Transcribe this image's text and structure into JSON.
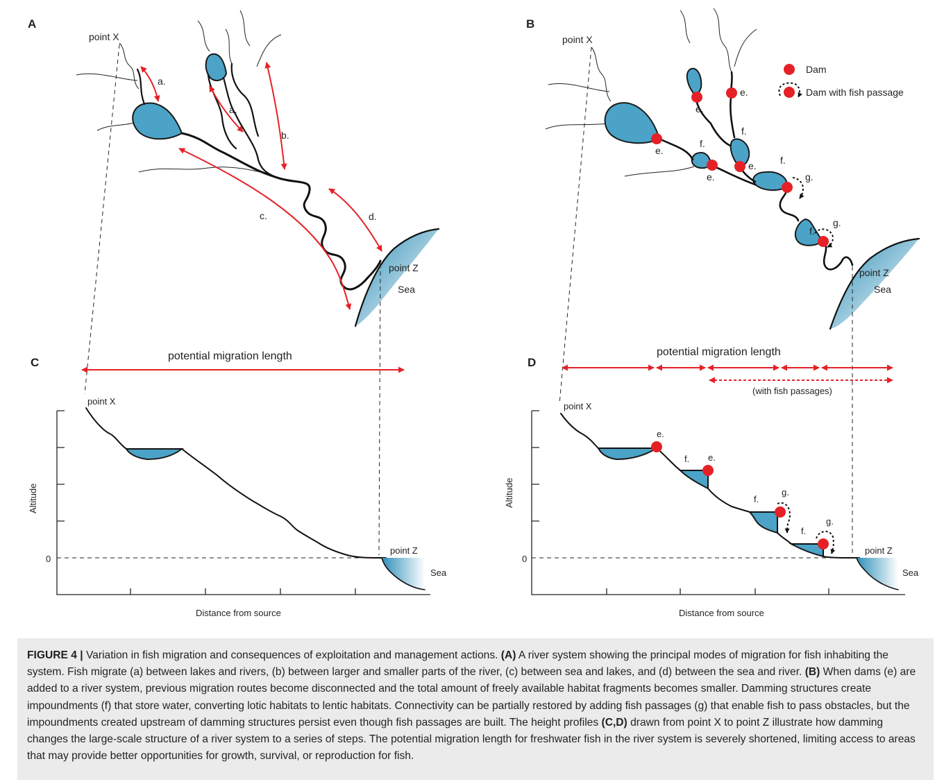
{
  "panels": {
    "A": "A",
    "B": "B",
    "C": "C",
    "D": "D"
  },
  "panel_a": {
    "point_x": "point X",
    "point_z": "point Z",
    "sea": "Sea",
    "route_labels": [
      "a.",
      "a.",
      "b.",
      "c.",
      "d."
    ]
  },
  "panel_b": {
    "point_x": "point X",
    "point_z": "point Z",
    "sea": "Sea",
    "legend": {
      "dam": "Dam",
      "dam_with_fish_passage": "Dam with fish passage"
    },
    "e_labels": [
      "e.",
      "e.",
      "e.",
      "e.",
      "e."
    ],
    "f_labels": [
      "f.",
      "f.",
      "f.",
      "f."
    ],
    "g_labels": [
      "g.",
      "g."
    ]
  },
  "panel_c": {
    "title": "potential migration length",
    "point_x": "point X",
    "point_z": "point Z",
    "sea": "Sea",
    "y_axis_label": "Altitude",
    "y_zero": "0",
    "x_axis_label": "Distance from source"
  },
  "panel_d": {
    "title": "potential migration length",
    "subtitle": "(with fish passages)",
    "point_x": "point X",
    "point_z": "point Z",
    "sea": "Sea",
    "y_axis_label": "Altitude",
    "y_zero": "0",
    "x_axis_label": "Distance from source",
    "step_labels": [
      "e.",
      "f.",
      "e.",
      "f.",
      "g.",
      "f.",
      "g."
    ]
  },
  "caption": {
    "figure_label": "FIGURE 4 |",
    "segments": [
      {
        "text": " Variation in fish migration and consequences of exploitation and management actions. "
      },
      {
        "text": "(A)",
        "bold": true
      },
      {
        "text": " A river system showing the principal modes of migration for fish inhabiting the system. Fish migrate (a) between lakes and rivers, (b) between larger and smaller parts of the river, (c) between sea and lakes, and (d) between the sea and river. "
      },
      {
        "text": "(B)",
        "bold": true
      },
      {
        "text": " When dams (e) are added to a river system, previous migration routes become disconnected and the total amount of freely available habitat fragments becomes smaller. Damming structures create impoundments (f) that store water, converting lotic habitats to lentic habitats. Connectivity can be partially restored by adding fish passages (g) that enable fish to pass obstacles, but the impoundments created upstream of damming structures persist even though fish passages are built. The height profiles "
      },
      {
        "text": "(C,D)",
        "bold": true
      },
      {
        "text": " drawn from point X to point Z illustrate how damming changes the large-scale structure of a river system to a series of steps. The potential migration length for freshwater fish in the river system is severely shortened, limiting access to areas that may provide better opportunities for growth, survival, or reproduction for fish."
      }
    ]
  },
  "colors": {
    "water": "#4ba3c7",
    "arrow": "#e52127",
    "dam": "#e52127",
    "caption_bg": "#ebebeb"
  }
}
